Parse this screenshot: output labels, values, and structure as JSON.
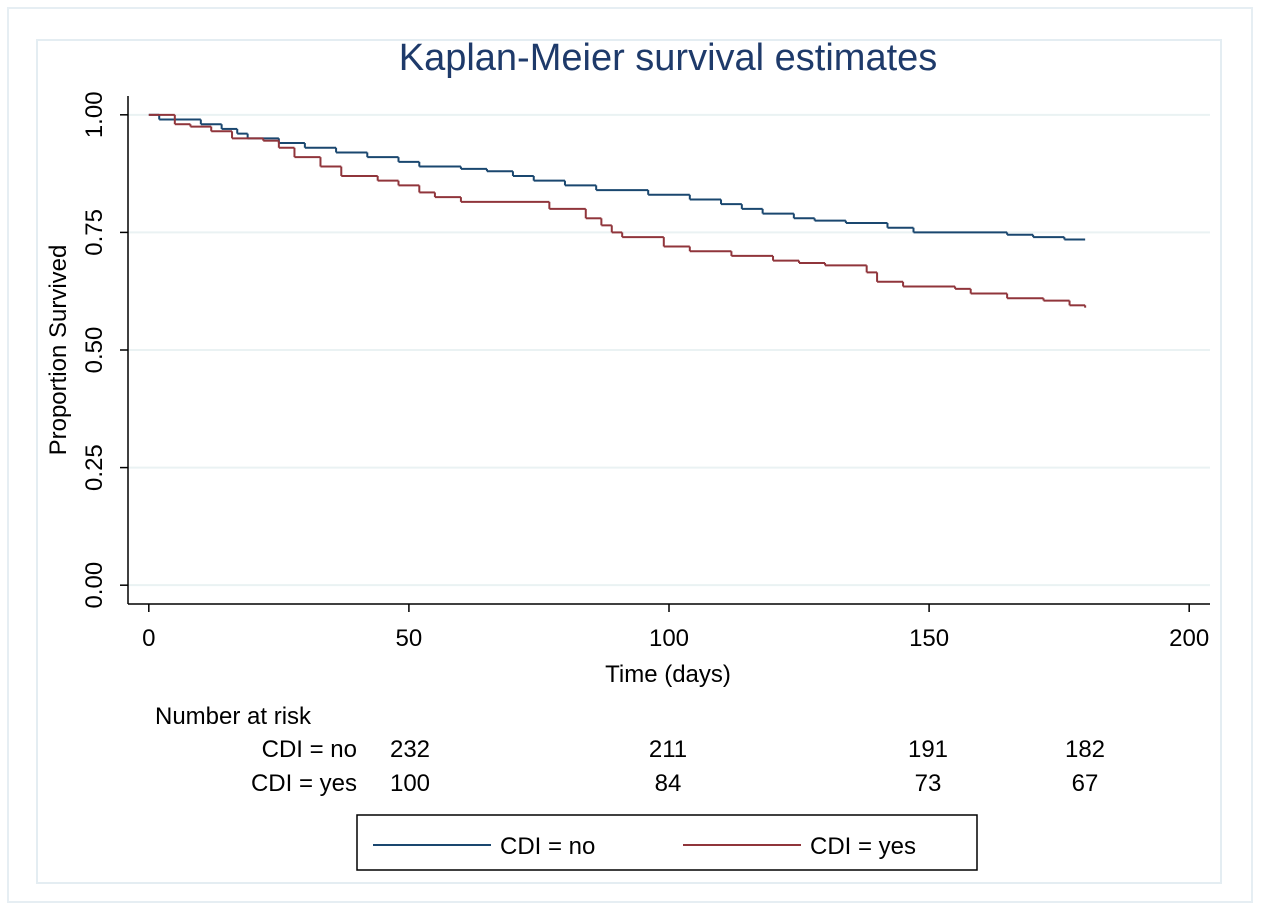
{
  "chart_data": {
    "type": "step",
    "title": "Kaplan-Meier survival estimates",
    "x_label": "Time (days)",
    "y_label": "Proportion Survived",
    "xlim": [
      -4,
      204
    ],
    "xticks": [
      0,
      50,
      100,
      150,
      200
    ],
    "ylim": [
      -0.04,
      1.04
    ],
    "yticks": [
      {
        "value": 0,
        "label": "0.00"
      },
      {
        "value": 0.25,
        "label": "0.25"
      },
      {
        "value": 0.5,
        "label": "0.50"
      },
      {
        "value": 0.75,
        "label": "0.75"
      },
      {
        "value": 1,
        "label": "1.00"
      }
    ],
    "grid": true,
    "series": [
      {
        "name": "CDI = no",
        "color": "#1a476f",
        "x": [
          0,
          2,
          10,
          14,
          17,
          19,
          25,
          30,
          36,
          42,
          48,
          52,
          60,
          65,
          70,
          74,
          80,
          86,
          96,
          104,
          110,
          114,
          118,
          124,
          128,
          134,
          142,
          147,
          165,
          170,
          176,
          180
        ],
        "values": [
          1,
          0.99,
          0.98,
          0.97,
          0.96,
          0.95,
          0.94,
          0.93,
          0.92,
          0.91,
          0.9,
          0.89,
          0.885,
          0.88,
          0.87,
          0.86,
          0.85,
          0.84,
          0.83,
          0.82,
          0.81,
          0.8,
          0.79,
          0.78,
          0.775,
          0.77,
          0.76,
          0.75,
          0.745,
          0.74,
          0.735,
          0.735
        ]
      },
      {
        "name": "CDI = yes",
        "color": "#90353b",
        "x": [
          0,
          5,
          8,
          12,
          16,
          22,
          25,
          28,
          33,
          37,
          44,
          48,
          52,
          55,
          60,
          77,
          84,
          87,
          89,
          91,
          99,
          104,
          112,
          120,
          125,
          130,
          138,
          140,
          145,
          155,
          158,
          165,
          172,
          177,
          180
        ],
        "values": [
          1,
          0.98,
          0.975,
          0.965,
          0.95,
          0.945,
          0.93,
          0.91,
          0.89,
          0.87,
          0.86,
          0.85,
          0.835,
          0.825,
          0.815,
          0.8,
          0.78,
          0.765,
          0.75,
          0.74,
          0.72,
          0.71,
          0.7,
          0.69,
          0.685,
          0.68,
          0.665,
          0.645,
          0.635,
          0.63,
          0.62,
          0.61,
          0.605,
          0.595,
          0.59
        ]
      }
    ],
    "at_risk": {
      "title": "Number at risk",
      "rows": [
        {
          "label": "CDI = no",
          "values": [
            232,
            211,
            191,
            182
          ]
        },
        {
          "label": "CDI = yes",
          "values": [
            100,
            84,
            73,
            67
          ]
        }
      ]
    }
  }
}
